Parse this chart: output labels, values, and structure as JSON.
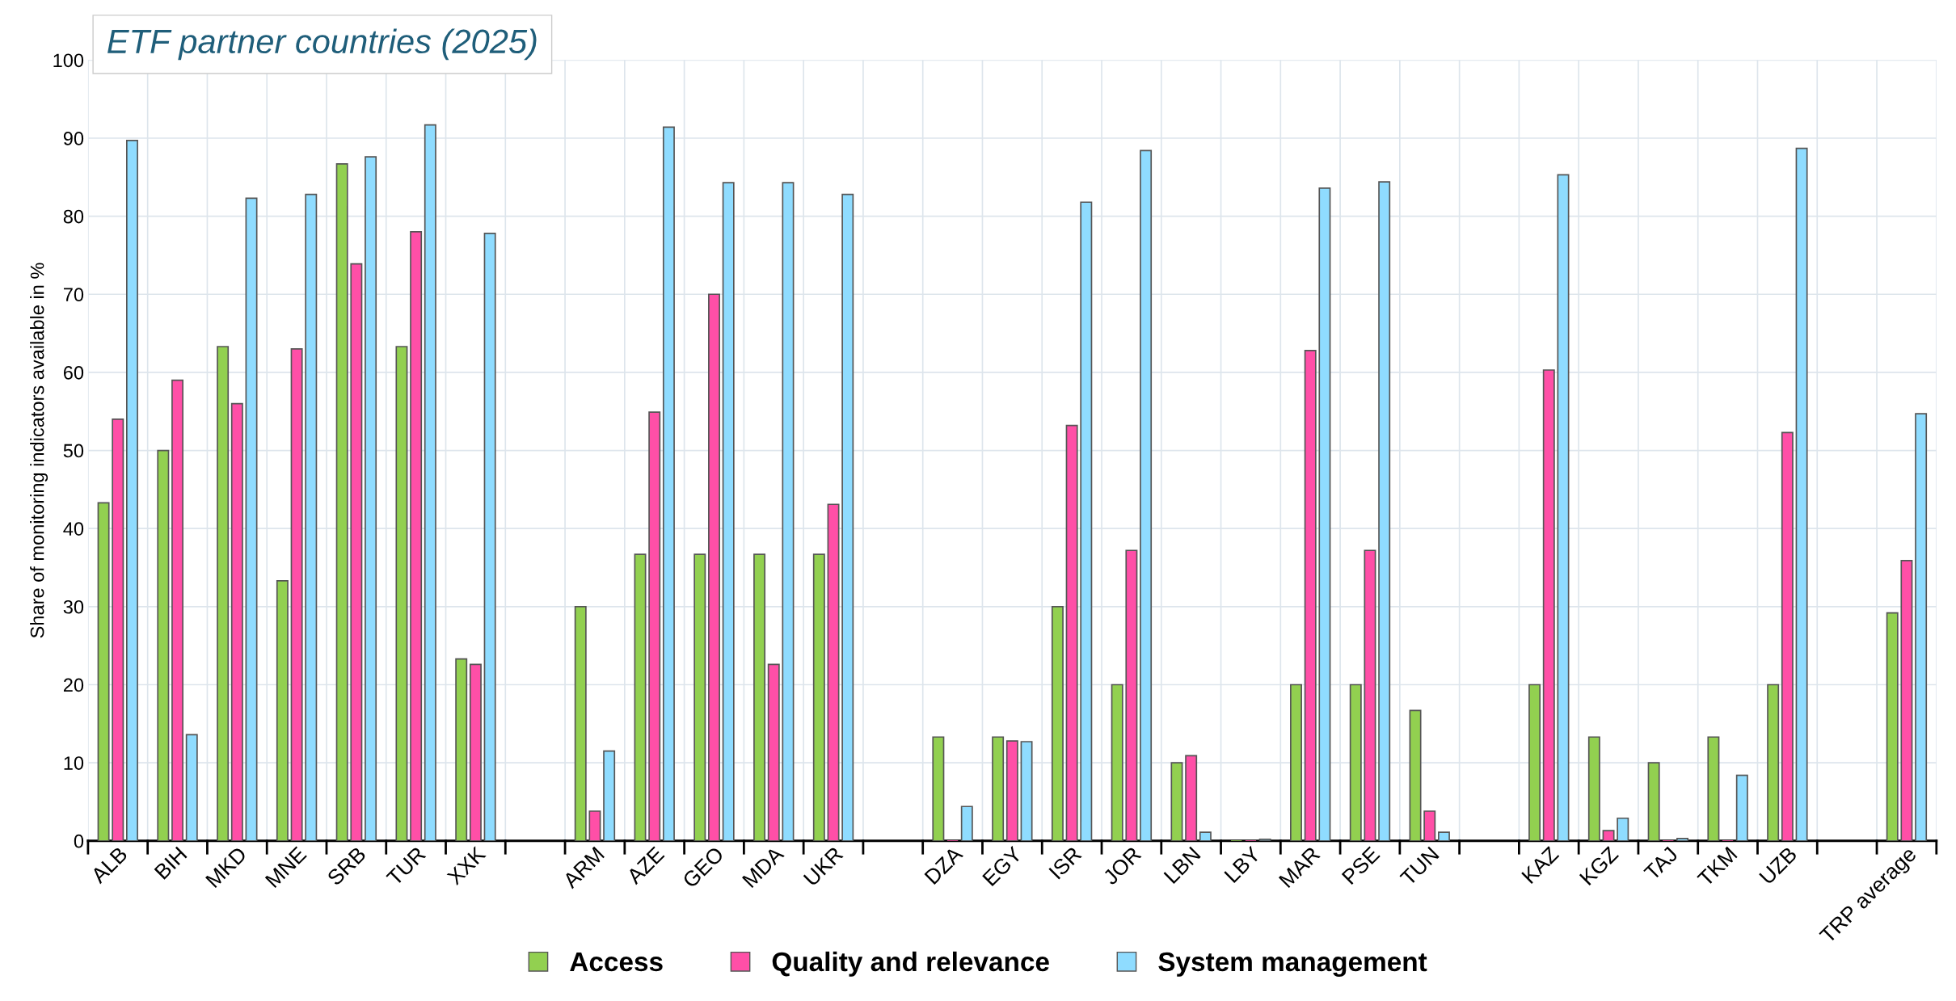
{
  "chart_data": {
    "type": "bar",
    "title": "ETF partner countries (2025)",
    "ylabel": "Share of monitoring indicators available in %",
    "categories": [
      "ALB",
      "BIH",
      "MKD",
      "MNE",
      "SRB",
      "TUR",
      "XXK",
      null,
      "ARM",
      "AZE",
      "GEO",
      "MDA",
      "UKR",
      null,
      "DZA",
      "EGY",
      "ISR",
      "JOR",
      "LBN",
      "LBY",
      "MAR",
      "PSE",
      "TUN",
      null,
      "KAZ",
      "KGZ",
      "TAJ",
      "TKM",
      "UZB",
      null,
      "TRP average"
    ],
    "series": [
      {
        "name": "Access",
        "color": "#92d050",
        "values": [
          43.3,
          50,
          63.3,
          33.3,
          86.7,
          63.3,
          23.3,
          null,
          30,
          36.7,
          36.7,
          36.7,
          36.7,
          null,
          13.3,
          13.3,
          30,
          20,
          10,
          0,
          20,
          20,
          16.7,
          null,
          20,
          13.3,
          10,
          13.3,
          20,
          null,
          29.2
        ]
      },
      {
        "name": "Quality and relevance",
        "color": "#ff4fa7",
        "values": [
          54,
          59,
          56,
          63,
          73.9,
          78,
          22.6,
          null,
          3.8,
          54.9,
          70,
          22.6,
          43.1,
          null,
          0,
          12.8,
          53.2,
          37.2,
          10.9,
          0,
          62.8,
          37.2,
          3.8,
          null,
          60.3,
          1.3,
          0,
          0,
          52.3,
          null,
          35.9
        ]
      },
      {
        "name": "System management",
        "color": "#8fdcff",
        "values": [
          89.7,
          13.6,
          82.3,
          82.8,
          87.6,
          91.7,
          77.8,
          null,
          11.5,
          91.4,
          84.3,
          84.3,
          82.8,
          null,
          4.4,
          12.7,
          81.8,
          88.4,
          1.1,
          0.2,
          83.6,
          84.4,
          1.1,
          null,
          85.3,
          2.9,
          0.3,
          8.4,
          88.7,
          null,
          54.7
        ]
      }
    ],
    "ylim": [
      0,
      100
    ],
    "yticks": [
      0,
      10,
      20,
      30,
      40,
      50,
      60,
      70,
      80,
      90,
      100
    ],
    "grid": true,
    "legend": "bottom"
  }
}
